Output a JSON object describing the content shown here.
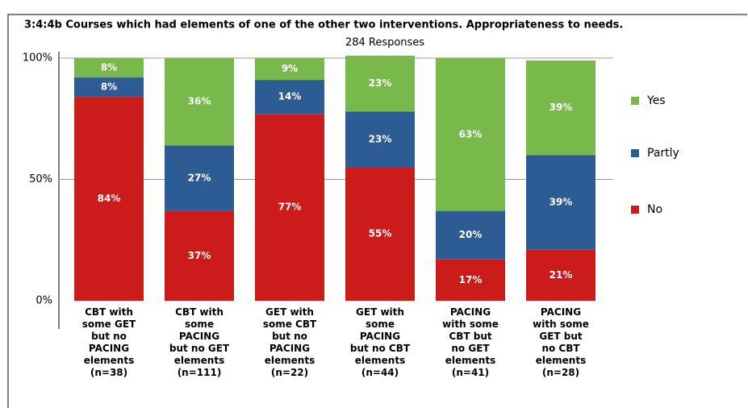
{
  "chart_data": {
    "type": "stacked_bar",
    "title": "3:4:4b  Courses which had elements of one of the other two interventions. Appropriateness to needs.",
    "subtitle": "284 Responses",
    "categories": [
      "CBT with\nsome GET\nbut no\nPACING\nelements\n(n=38)",
      "CBT with\nsome\nPACING\nbut no GET\nelements\n(n=111)",
      "GET with\nsome CBT\nbut no\nPACING\nelements\n(n=22)",
      "GET with\nsome\nPACING\nbut no CBT\nelements\n(n=44)",
      "PACING\nwith some\nCBT but\nno GET\nelements\n(n=41)",
      "PACING\nwith some\nGET but\nno CBT\nelements\n(n=28)"
    ],
    "series": [
      {
        "name": "No",
        "color": "#cc1b1b",
        "values": [
          84,
          37,
          77,
          55,
          17,
          21
        ],
        "value_labels": [
          "84%",
          "37%",
          "77%",
          "55%",
          "17%",
          "21%"
        ]
      },
      {
        "name": "Partly",
        "color": "#2d5b94",
        "values": [
          8,
          27,
          14,
          23,
          20,
          39
        ],
        "value_labels": [
          "8%",
          "27%",
          "14%",
          "23%",
          "20%",
          "39%"
        ]
      },
      {
        "name": "Yes",
        "color": "#79b84a",
        "values": [
          8,
          36,
          9,
          23,
          63,
          39
        ],
        "value_labels": [
          "8%",
          "36%",
          "9%",
          "23%",
          "63%",
          "39%"
        ]
      }
    ],
    "ylim": [
      0,
      100
    ],
    "yticks": [
      {
        "value": 0,
        "label": "0%"
      },
      {
        "value": 50,
        "label": "50%"
      },
      {
        "value": 100,
        "label": "100%"
      }
    ],
    "grid": true,
    "legend": "right"
  }
}
